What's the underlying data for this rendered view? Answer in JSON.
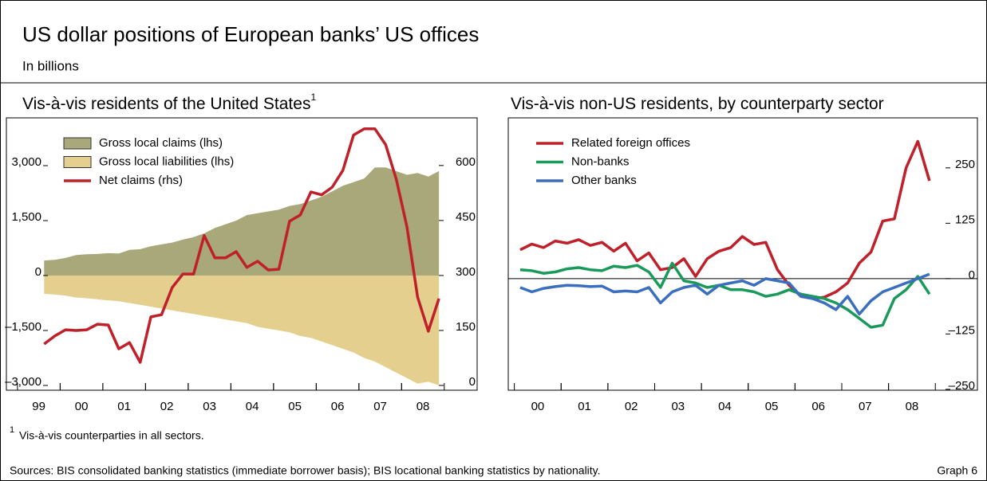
{
  "header": {
    "title": "US dollar positions of European banks’ US offices",
    "subtitle": "In billions"
  },
  "footer": {
    "footnote_mark": "1",
    "footnote": "Vis-à-vis counterparties in all sectors.",
    "sources": "Sources: BIS consolidated banking statistics (immediate borrower basis); BIS locational banking statistics by nationality.",
    "graph": "Graph 6"
  },
  "chart_data": [
    {
      "type": "area",
      "title": "Vis-à-vis residents of the United States",
      "title_note": "1",
      "x": [
        1999.625,
        1999.875,
        2000.125,
        2000.375,
        2000.625,
        2000.875,
        2001.125,
        2001.375,
        2001.625,
        2001.875,
        2002.125,
        2002.375,
        2002.625,
        2002.875,
        2003.125,
        2003.375,
        2003.625,
        2003.875,
        2004.125,
        2004.375,
        2004.625,
        2004.875,
        2005.125,
        2005.375,
        2005.625,
        2005.875,
        2006.125,
        2006.375,
        2006.625,
        2006.875,
        2007.125,
        2007.375,
        2007.625,
        2007.875,
        2008.125,
        2008.375,
        2008.625,
        2008.875
      ],
      "xlim": [
        1998.74,
        2009.77
      ],
      "xticks": [
        {
          "value": 1999.5,
          "label": "99"
        },
        {
          "value": 2000.5,
          "label": "00"
        },
        {
          "value": 2001.5,
          "label": "01"
        },
        {
          "value": 2002.5,
          "label": "02"
        },
        {
          "value": 2003.5,
          "label": "03"
        },
        {
          "value": 2004.5,
          "label": "04"
        },
        {
          "value": 2005.5,
          "label": "05"
        },
        {
          "value": 2006.5,
          "label": "06"
        },
        {
          "value": 2007.5,
          "label": "07"
        },
        {
          "value": 2008.5,
          "label": "08"
        }
      ],
      "ylim": [
        -3130,
        4304
      ],
      "yticks": [
        {
          "value": -3000,
          "label": "–3,000"
        },
        {
          "value": -1500,
          "label": "–1,500"
        },
        0,
        {
          "value": 1500,
          "label": "1,500"
        },
        {
          "value": 3000,
          "label": "3,000"
        }
      ],
      "y2lim": [
        -13,
        730
      ],
      "y2ticks": [
        0,
        150,
        300,
        450,
        600
      ],
      "legend": "upper left",
      "series": [
        {
          "name": "Gross local claims (lhs)",
          "kind": "area",
          "color": "#a8a87a",
          "axis": "y",
          "values": [
            410,
            430,
            480,
            560,
            580,
            590,
            610,
            600,
            700,
            720,
            800,
            850,
            900,
            980,
            1050,
            1150,
            1300,
            1400,
            1500,
            1650,
            1700,
            1750,
            1800,
            1900,
            1950,
            2050,
            2150,
            2300,
            2450,
            2550,
            2650,
            2950,
            2950,
            2850,
            2750,
            2800,
            2700,
            2850
          ]
        },
        {
          "name": "Gross local liabilities (lhs)",
          "kind": "area",
          "color": "#e5cf8f",
          "axis": "y",
          "values": [
            -500,
            -520,
            -550,
            -600,
            -620,
            -650,
            -680,
            -700,
            -750,
            -800,
            -850,
            -900,
            -950,
            -1000,
            -1050,
            -1100,
            -1150,
            -1200,
            -1250,
            -1300,
            -1400,
            -1450,
            -1500,
            -1550,
            -1650,
            -1700,
            -1800,
            -1900,
            -2000,
            -2100,
            -2250,
            -2350,
            -2500,
            -2650,
            -2800,
            -2950,
            -2900,
            -3000
          ]
        },
        {
          "name": "Net claims (rhs)",
          "kind": "line",
          "color": "#c0202a",
          "axis": "y2",
          "values": [
            113,
            135,
            152,
            150,
            152,
            167,
            165,
            100,
            117,
            63,
            187,
            193,
            267,
            304,
            304,
            409,
            348,
            348,
            365,
            322,
            339,
            315,
            317,
            448,
            465,
            528,
            520,
            541,
            587,
            683,
            700,
            700,
            657,
            563,
            433,
            241,
            148,
            237
          ]
        }
      ]
    },
    {
      "type": "line",
      "title": "Vis-à-vis non-US residents, by counterparty sector",
      "x": [
        2000.125,
        2000.375,
        2000.625,
        2000.875,
        2001.125,
        2001.375,
        2001.625,
        2001.875,
        2002.125,
        2002.375,
        2002.625,
        2002.875,
        2003.125,
        2003.375,
        2003.625,
        2003.875,
        2004.125,
        2004.375,
        2004.625,
        2004.875,
        2005.125,
        2005.375,
        2005.625,
        2005.875,
        2006.125,
        2006.375,
        2006.625,
        2006.875,
        2007.125,
        2007.375,
        2007.625,
        2007.875,
        2008.125,
        2008.375,
        2008.625,
        2008.875
      ],
      "xlim": [
        1999.87,
        2009.9
      ],
      "xticks": [
        {
          "value": 2000.5,
          "label": "00"
        },
        {
          "value": 2001.5,
          "label": "01"
        },
        {
          "value": 2002.5,
          "label": "02"
        },
        {
          "value": 2003.5,
          "label": "03"
        },
        {
          "value": 2004.5,
          "label": "04"
        },
        {
          "value": 2005.5,
          "label": "05"
        },
        {
          "value": 2006.5,
          "label": "06"
        },
        {
          "value": 2007.5,
          "label": "07"
        },
        {
          "value": 2008.5,
          "label": "08"
        }
      ],
      "ylim": [
        -252,
        363
      ],
      "yticks": [
        {
          "value": -250,
          "label": "–250"
        },
        {
          "value": -125,
          "label": "–125"
        },
        0,
        125,
        250
      ],
      "zero_line": true,
      "legend": "upper left",
      "series": [
        {
          "name": "Related foreign offices",
          "color": "#c0202a",
          "values": [
            65,
            78,
            70,
            85,
            80,
            88,
            75,
            82,
            62,
            80,
            40,
            58,
            20,
            25,
            45,
            5,
            45,
            62,
            70,
            95,
            77,
            82,
            20,
            -15,
            -40,
            -45,
            -42,
            -30,
            -10,
            35,
            60,
            130,
            135,
            250,
            310,
            221
          ]
        },
        {
          "name": "Non-banks",
          "color": "#1a9a5a",
          "values": [
            20,
            18,
            12,
            15,
            22,
            25,
            20,
            18,
            28,
            25,
            30,
            15,
            -20,
            35,
            -5,
            -10,
            -20,
            -15,
            -25,
            -25,
            -30,
            -40,
            -35,
            -25,
            -35,
            -40,
            -45,
            -55,
            -70,
            -90,
            -110,
            -105,
            -45,
            -25,
            5,
            -35
          ]
        },
        {
          "name": "Other banks",
          "color": "#3a6fbf",
          "values": [
            -20,
            -30,
            -22,
            -18,
            -15,
            -16,
            -18,
            -17,
            -30,
            -28,
            -30,
            -20,
            -55,
            -30,
            -20,
            -15,
            -35,
            -15,
            -10,
            -5,
            -15,
            0,
            -5,
            -10,
            -40,
            -45,
            -55,
            -70,
            -40,
            -80,
            -50,
            -30,
            -20,
            -10,
            0,
            10
          ]
        }
      ]
    }
  ]
}
